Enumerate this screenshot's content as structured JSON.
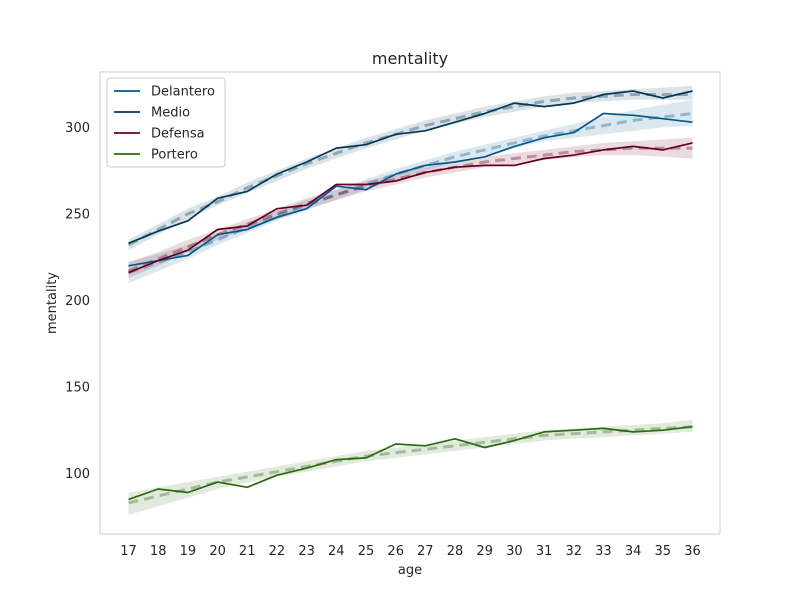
{
  "chart_data": {
    "type": "line",
    "title": "mentality",
    "xlabel": "age",
    "ylabel": "mentality",
    "categories": [
      17,
      18,
      19,
      20,
      21,
      22,
      23,
      24,
      25,
      26,
      27,
      28,
      29,
      30,
      31,
      32,
      33,
      34,
      35,
      36
    ],
    "ylim": [
      65,
      332
    ],
    "yticks": [
      100,
      150,
      200,
      250,
      300
    ],
    "grid": false,
    "legend_position": "top-left",
    "series": [
      {
        "name": "Delantero",
        "color": "#045a8d",
        "values": [
          220,
          223,
          226,
          238,
          241,
          248,
          253,
          266,
          264,
          273,
          278,
          280,
          283,
          289,
          294,
          297,
          308,
          307,
          305,
          303
        ],
        "trend": [
          216,
          222,
          228,
          235,
          242,
          249,
          255,
          261,
          267,
          273,
          278,
          283,
          287,
          291,
          295,
          298,
          301,
          304,
          306,
          308
        ],
        "band": [
          [
            210,
            222
          ],
          [
            217,
            227
          ],
          [
            224,
            232
          ],
          [
            232,
            239
          ],
          [
            239,
            245
          ],
          [
            246,
            252
          ],
          [
            252,
            258
          ],
          [
            258,
            264
          ],
          [
            264,
            270
          ],
          [
            270,
            276
          ],
          [
            275,
            281
          ],
          [
            280,
            286
          ],
          [
            284,
            290
          ],
          [
            288,
            294
          ],
          [
            292,
            298
          ],
          [
            294,
            302
          ],
          [
            296,
            306
          ],
          [
            298,
            310
          ],
          [
            300,
            313
          ],
          [
            301,
            316
          ]
        ]
      },
      {
        "name": "Medio",
        "color": "#023858",
        "values": [
          233,
          240,
          246,
          259,
          263,
          273,
          280,
          288,
          290,
          296,
          298,
          303,
          308,
          314,
          312,
          314,
          319,
          321,
          317,
          321
        ],
        "trend": [
          232,
          241,
          250,
          257,
          265,
          272,
          279,
          285,
          291,
          296,
          301,
          305,
          309,
          312,
          315,
          317,
          318,
          319,
          319,
          319
        ],
        "band": [
          [
            229,
            235
          ],
          [
            238,
            244
          ],
          [
            247,
            253
          ],
          [
            255,
            260
          ],
          [
            262,
            268
          ],
          [
            269,
            275
          ],
          [
            276,
            282
          ],
          [
            282,
            288
          ],
          [
            288,
            294
          ],
          [
            293,
            299
          ],
          [
            298,
            304
          ],
          [
            302,
            308
          ],
          [
            306,
            312
          ],
          [
            309,
            315
          ],
          [
            312,
            318
          ],
          [
            314,
            320
          ],
          [
            315,
            321
          ],
          [
            316,
            322
          ],
          [
            316,
            323
          ],
          [
            316,
            324
          ]
        ]
      },
      {
        "name": "Defensa",
        "color": "#67001f",
        "values": [
          216,
          223,
          229,
          241,
          243,
          253,
          255,
          267,
          267,
          269,
          274,
          277,
          278,
          278,
          282,
          284,
          287,
          289,
          287,
          291
        ],
        "trend": [
          217,
          224,
          231,
          238,
          244,
          250,
          256,
          261,
          266,
          270,
          274,
          277,
          280,
          282,
          284,
          286,
          287,
          288,
          288,
          288
        ],
        "band": [
          [
            213,
            222
          ],
          [
            220,
            228
          ],
          [
            228,
            235
          ],
          [
            235,
            241
          ],
          [
            241,
            247
          ],
          [
            247,
            253
          ],
          [
            253,
            259
          ],
          [
            258,
            264
          ],
          [
            263,
            269
          ],
          [
            267,
            273
          ],
          [
            271,
            277
          ],
          [
            274,
            280
          ],
          [
            277,
            283
          ],
          [
            279,
            285
          ],
          [
            281,
            287
          ],
          [
            283,
            289
          ],
          [
            284,
            291
          ],
          [
            284,
            292
          ],
          [
            283,
            293
          ],
          [
            282,
            294
          ]
        ]
      },
      {
        "name": "Portero",
        "color": "#2d6a0f",
        "values": [
          85,
          91,
          89,
          95,
          92,
          99,
          103,
          108,
          109,
          117,
          116,
          120,
          115,
          119,
          124,
          125,
          126,
          124,
          125,
          127
        ],
        "trend": [
          83,
          87,
          91,
          95,
          98,
          101,
          104,
          107,
          110,
          112,
          114,
          116,
          118,
          120,
          122,
          123,
          124,
          125,
          126,
          127
        ],
        "band": [
          [
            76,
            89
          ],
          [
            81,
            92
          ],
          [
            86,
            95
          ],
          [
            91,
            98
          ],
          [
            95,
            101
          ],
          [
            98,
            104
          ],
          [
            101,
            107
          ],
          [
            104,
            110
          ],
          [
            107,
            113
          ],
          [
            109,
            115
          ],
          [
            111,
            117
          ],
          [
            113,
            119
          ],
          [
            115,
            121
          ],
          [
            117,
            123
          ],
          [
            119,
            125
          ],
          [
            120,
            126
          ],
          [
            121,
            127
          ],
          [
            122,
            128
          ],
          [
            123,
            129
          ],
          [
            124,
            131
          ]
        ]
      }
    ]
  }
}
